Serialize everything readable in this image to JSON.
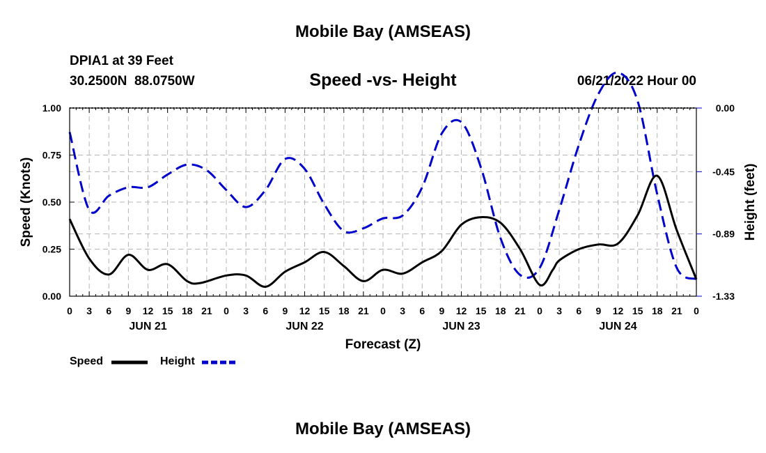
{
  "header": {
    "title": "Mobile Bay (AMSEAS)",
    "station": "DPIA1 at 39 Feet",
    "coords": "30.2500N  88.0750W",
    "subtitle": "Speed -vs- Height",
    "datetime": "06/21/2022 Hour 00",
    "footer_title": "Mobile Bay (AMSEAS)"
  },
  "colors": {
    "speed": "#000000",
    "height": "#0000cc",
    "grid": "#b4b4b4"
  },
  "chart_data": {
    "type": "line",
    "title": "Speed -vs- Height",
    "xlabel": "Forecast (Z)",
    "ylabel": "Speed (Knots)",
    "y2label": "Height (feet)",
    "xlim": [
      0,
      96
    ],
    "ylim": [
      0,
      1.0
    ],
    "y2lim": [
      -1.33,
      0.0
    ],
    "x_tick_labels": [
      "0",
      "3",
      "6",
      "9",
      "12",
      "15",
      "18",
      "21",
      "0",
      "3",
      "6",
      "9",
      "12",
      "15",
      "18",
      "21",
      "0",
      "3",
      "6",
      "9",
      "12",
      "15",
      "18",
      "21",
      "0",
      "3",
      "6",
      "9",
      "12",
      "15",
      "18",
      "21",
      "0"
    ],
    "day_labels": [
      "JUN 21",
      "JUN 22",
      "JUN 23",
      "JUN 24"
    ],
    "y_ticks": [
      0.0,
      0.25,
      0.5,
      0.75,
      1.0
    ],
    "y_tick_labels": [
      "0.00",
      "0.25",
      "0.50",
      "0.75",
      "1.00"
    ],
    "y2_ticks": [
      0.0,
      -0.45,
      -0.89,
      -1.33
    ],
    "y2_tick_labels": [
      "0.00",
      "-0.45",
      "-0.89",
      "-1.33"
    ],
    "grid": true,
    "legend_position": "bottom-left",
    "series": [
      {
        "name": "Speed",
        "axis": "left",
        "style": "solid",
        "x": [
          0,
          3,
          6,
          9,
          12,
          15,
          18,
          20,
          24,
          27,
          30,
          33,
          36,
          39,
          42,
          45,
          48,
          51,
          54,
          57,
          60,
          63,
          66,
          69,
          72,
          74,
          75,
          78,
          81,
          84,
          87,
          90,
          93,
          96
        ],
        "y": [
          0.41,
          0.2,
          0.115,
          0.22,
          0.14,
          0.17,
          0.08,
          0.07,
          0.11,
          0.11,
          0.05,
          0.13,
          0.18,
          0.235,
          0.16,
          0.08,
          0.14,
          0.12,
          0.18,
          0.24,
          0.38,
          0.42,
          0.39,
          0.25,
          0.06,
          0.14,
          0.19,
          0.25,
          0.275,
          0.28,
          0.43,
          0.64,
          0.35,
          0.09
        ]
      },
      {
        "name": "Height",
        "axis": "right",
        "style": "dashed",
        "x": [
          0,
          3,
          6,
          9,
          12,
          15,
          18,
          21,
          24,
          27,
          30,
          33,
          36,
          39,
          42,
          45,
          48,
          51,
          54,
          57,
          60,
          63,
          66,
          69,
          72,
          75,
          78,
          81,
          84,
          87,
          90,
          93,
          96
        ],
        "y": [
          -0.17,
          -0.72,
          -0.62,
          -0.56,
          -0.56,
          -0.47,
          -0.4,
          -0.44,
          -0.58,
          -0.7,
          -0.58,
          -0.36,
          -0.43,
          -0.68,
          -0.87,
          -0.85,
          -0.78,
          -0.76,
          -0.56,
          -0.18,
          -0.1,
          -0.42,
          -0.92,
          -1.18,
          -1.13,
          -0.72,
          -0.26,
          0.1,
          0.25,
          0.05,
          -0.61,
          -1.13,
          -1.21
        ]
      }
    ]
  }
}
